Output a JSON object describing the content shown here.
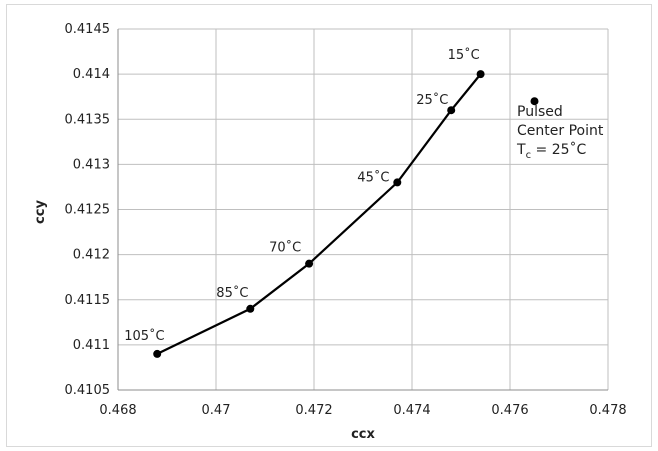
{
  "chart_data": {
    "type": "scatter",
    "xlabel": "ccx",
    "ylabel": "ccy",
    "xlim": [
      0.468,
      0.478
    ],
    "ylim": [
      0.4105,
      0.4145
    ],
    "x_ticks": [
      "0.468",
      "0.47",
      "0.472",
      "0.474",
      "0.476",
      "0.478"
    ],
    "y_ticks": [
      "0.4105",
      "0.411",
      "0.4115",
      "0.412",
      "0.4125",
      "0.413",
      "0.4135",
      "0.414",
      "0.4145"
    ],
    "grid": true,
    "series": [
      {
        "points": [
          {
            "x": 0.4688,
            "y": 0.4109,
            "label": "105˚C"
          },
          {
            "x": 0.4707,
            "y": 0.4114,
            "label": "85˚C"
          },
          {
            "x": 0.4719,
            "y": 0.4119,
            "label": "70˚C"
          },
          {
            "x": 0.4737,
            "y": 0.4128,
            "label": "45˚C"
          },
          {
            "x": 0.4748,
            "y": 0.4136,
            "label": "25˚C"
          },
          {
            "x": 0.4754,
            "y": 0.414,
            "label": "15˚C"
          }
        ],
        "style": "line-with-markers",
        "color": "#000000"
      },
      {
        "points": [
          {
            "x": 0.4765,
            "y": 0.4137
          }
        ],
        "style": "marker",
        "color": "#000000"
      }
    ],
    "annotation": {
      "lines": [
        "Pulsed",
        "Center Point"
      ],
      "tc_label": "T",
      "tc_sub": "c",
      "tc_value": " = 25˚C"
    }
  }
}
